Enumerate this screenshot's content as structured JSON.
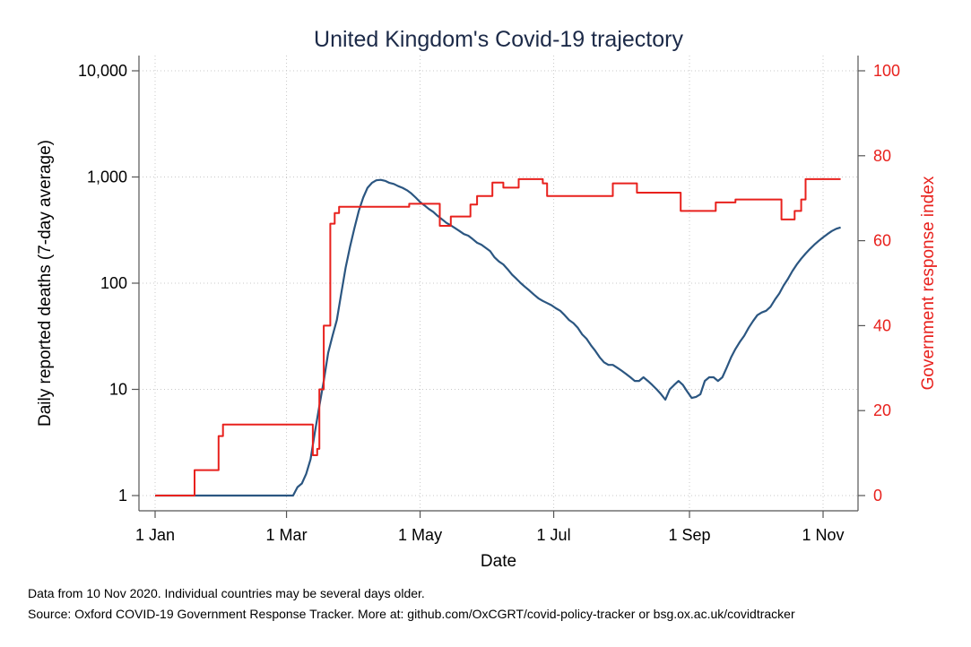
{
  "colors": {
    "deaths_line": "#2b5681",
    "response_line": "#e8211d",
    "right_axis": "#e8211d",
    "title": "#1c2a48",
    "grid": "#c8c8c8",
    "axis": "#555555"
  },
  "notes": {
    "line1": "Data from 10 Nov 2020. Individual countries may be several days older.",
    "line2": "Source: Oxford COVID-19 Government Response Tracker. More at: github.com/OxCGRT/covid-policy-tracker or bsg.ox.ac.uk/covidtracker"
  },
  "chart_data": {
    "type": "line",
    "title": "United Kingdom's Covid-19 trajectory",
    "xlabel": "Date",
    "ylabel": "Daily reported deaths (7-day average)",
    "y2label": "Government response index",
    "grid": true,
    "x_ticks": [
      {
        "date": "2020-01-01",
        "label": "1 Jan"
      },
      {
        "date": "2020-03-01",
        "label": "1 Mar"
      },
      {
        "date": "2020-05-01",
        "label": "1 May"
      },
      {
        "date": "2020-07-01",
        "label": "1 Jul"
      },
      {
        "date": "2020-09-01",
        "label": "1 Sep"
      },
      {
        "date": "2020-11-01",
        "label": "1 Nov"
      }
    ],
    "xlim": [
      "2020-01-01",
      "2020-11-10"
    ],
    "y_scale": "log",
    "ylim": [
      1,
      10000
    ],
    "y_ticks": [
      {
        "value": 1,
        "label": "1"
      },
      {
        "value": 10,
        "label": "10"
      },
      {
        "value": 100,
        "label": "100"
      },
      {
        "value": 1000,
        "label": "1,000"
      },
      {
        "value": 10000,
        "label": "10,000"
      }
    ],
    "y2lim": [
      0,
      100
    ],
    "y2_ticks": [
      {
        "value": 0,
        "label": "0"
      },
      {
        "value": 20,
        "label": "20"
      },
      {
        "value": 40,
        "label": "40"
      },
      {
        "value": 60,
        "label": "60"
      },
      {
        "value": 80,
        "label": "80"
      },
      {
        "value": 100,
        "label": "100"
      }
    ],
    "series": [
      {
        "axis": "left",
        "color": "#2b5681",
        "points": [
          [
            "2020-01-01",
            1
          ],
          [
            "2020-03-04",
            1
          ],
          [
            "2020-03-06",
            1.2
          ],
          [
            "2020-03-08",
            1.3
          ],
          [
            "2020-03-10",
            1.6
          ],
          [
            "2020-03-12",
            2.2
          ],
          [
            "2020-03-14",
            4
          ],
          [
            "2020-03-16",
            7
          ],
          [
            "2020-03-18",
            12
          ],
          [
            "2020-03-20",
            22
          ],
          [
            "2020-03-22",
            32
          ],
          [
            "2020-03-24",
            45
          ],
          [
            "2020-03-26",
            80
          ],
          [
            "2020-03-28",
            140
          ],
          [
            "2020-03-30",
            220
          ],
          [
            "2020-04-01",
            330
          ],
          [
            "2020-04-03",
            480
          ],
          [
            "2020-04-05",
            640
          ],
          [
            "2020-04-07",
            790
          ],
          [
            "2020-04-09",
            880
          ],
          [
            "2020-04-11",
            930
          ],
          [
            "2020-04-13",
            940
          ],
          [
            "2020-04-15",
            920
          ],
          [
            "2020-04-17",
            880
          ],
          [
            "2020-04-19",
            860
          ],
          [
            "2020-04-21",
            820
          ],
          [
            "2020-04-23",
            790
          ],
          [
            "2020-04-25",
            750
          ],
          [
            "2020-04-27",
            700
          ],
          [
            "2020-04-29",
            640
          ],
          [
            "2020-05-01",
            580
          ],
          [
            "2020-05-03",
            540
          ],
          [
            "2020-05-05",
            500
          ],
          [
            "2020-05-07",
            470
          ],
          [
            "2020-05-09",
            430
          ],
          [
            "2020-05-11",
            400
          ],
          [
            "2020-05-13",
            370
          ],
          [
            "2020-05-15",
            350
          ],
          [
            "2020-05-17",
            330
          ],
          [
            "2020-05-19",
            310
          ],
          [
            "2020-05-21",
            290
          ],
          [
            "2020-05-23",
            280
          ],
          [
            "2020-05-25",
            260
          ],
          [
            "2020-05-27",
            240
          ],
          [
            "2020-05-29",
            230
          ],
          [
            "2020-05-31",
            215
          ],
          [
            "2020-06-02",
            200
          ],
          [
            "2020-06-04",
            175
          ],
          [
            "2020-06-06",
            160
          ],
          [
            "2020-06-08",
            150
          ],
          [
            "2020-06-10",
            135
          ],
          [
            "2020-06-12",
            120
          ],
          [
            "2020-06-14",
            110
          ],
          [
            "2020-06-16",
            100
          ],
          [
            "2020-06-18",
            92
          ],
          [
            "2020-06-20",
            85
          ],
          [
            "2020-06-22",
            78
          ],
          [
            "2020-06-24",
            72
          ],
          [
            "2020-06-26",
            68
          ],
          [
            "2020-06-28",
            65
          ],
          [
            "2020-06-30",
            62
          ],
          [
            "2020-07-02",
            58
          ],
          [
            "2020-07-04",
            55
          ],
          [
            "2020-07-06",
            50
          ],
          [
            "2020-07-08",
            45
          ],
          [
            "2020-07-10",
            42
          ],
          [
            "2020-07-12",
            38
          ],
          [
            "2020-07-14",
            33
          ],
          [
            "2020-07-16",
            30
          ],
          [
            "2020-07-18",
            26
          ],
          [
            "2020-07-20",
            23
          ],
          [
            "2020-07-22",
            20
          ],
          [
            "2020-07-24",
            18
          ],
          [
            "2020-07-26",
            17
          ],
          [
            "2020-07-28",
            17
          ],
          [
            "2020-07-30",
            16
          ],
          [
            "2020-08-01",
            15
          ],
          [
            "2020-08-03",
            14
          ],
          [
            "2020-08-05",
            13
          ],
          [
            "2020-08-07",
            12
          ],
          [
            "2020-08-09",
            12
          ],
          [
            "2020-08-11",
            13
          ],
          [
            "2020-08-13",
            12
          ],
          [
            "2020-08-15",
            11
          ],
          [
            "2020-08-17",
            10
          ],
          [
            "2020-08-19",
            9
          ],
          [
            "2020-08-21",
            8
          ],
          [
            "2020-08-23",
            10
          ],
          [
            "2020-08-25",
            11
          ],
          [
            "2020-08-27",
            12
          ],
          [
            "2020-08-29",
            11
          ],
          [
            "2020-08-31",
            9.5
          ],
          [
            "2020-09-02",
            8.3
          ],
          [
            "2020-09-04",
            8.5
          ],
          [
            "2020-09-06",
            9
          ],
          [
            "2020-09-08",
            12
          ],
          [
            "2020-09-10",
            13
          ],
          [
            "2020-09-12",
            13
          ],
          [
            "2020-09-14",
            12
          ],
          [
            "2020-09-16",
            13
          ],
          [
            "2020-09-18",
            16
          ],
          [
            "2020-09-20",
            20
          ],
          [
            "2020-09-22",
            24
          ],
          [
            "2020-09-24",
            28
          ],
          [
            "2020-09-26",
            32
          ],
          [
            "2020-09-28",
            38
          ],
          [
            "2020-09-30",
            44
          ],
          [
            "2020-10-02",
            50
          ],
          [
            "2020-10-04",
            53
          ],
          [
            "2020-10-06",
            55
          ],
          [
            "2020-10-08",
            60
          ],
          [
            "2020-10-10",
            70
          ],
          [
            "2020-10-12",
            80
          ],
          [
            "2020-10-14",
            95
          ],
          [
            "2020-10-16",
            110
          ],
          [
            "2020-10-18",
            130
          ],
          [
            "2020-10-20",
            150
          ],
          [
            "2020-10-22",
            170
          ],
          [
            "2020-10-24",
            190
          ],
          [
            "2020-10-26",
            210
          ],
          [
            "2020-10-28",
            230
          ],
          [
            "2020-10-30",
            250
          ],
          [
            "2020-11-01",
            270
          ],
          [
            "2020-11-03",
            290
          ],
          [
            "2020-11-05",
            310
          ],
          [
            "2020-11-07",
            325
          ],
          [
            "2020-11-09",
            335
          ]
        ]
      },
      {
        "axis": "right",
        "color": "#e8211d",
        "points": [
          [
            "2020-01-01",
            0
          ],
          [
            "2020-01-19",
            0
          ],
          [
            "2020-01-19",
            6
          ],
          [
            "2020-01-30",
            6
          ],
          [
            "2020-01-30",
            14
          ],
          [
            "2020-02-01",
            14
          ],
          [
            "2020-02-01",
            16.7
          ],
          [
            "2020-03-13",
            16.7
          ],
          [
            "2020-03-13",
            9.5
          ],
          [
            "2020-03-15",
            9.5
          ],
          [
            "2020-03-15",
            11
          ],
          [
            "2020-03-16",
            11
          ],
          [
            "2020-03-16",
            25
          ],
          [
            "2020-03-18",
            25
          ],
          [
            "2020-03-18",
            40
          ],
          [
            "2020-03-21",
            40
          ],
          [
            "2020-03-21",
            64
          ],
          [
            "2020-03-23",
            64
          ],
          [
            "2020-03-23",
            66.5
          ],
          [
            "2020-03-25",
            66.5
          ],
          [
            "2020-03-25",
            68
          ],
          [
            "2020-04-26",
            68
          ],
          [
            "2020-04-26",
            68.7
          ],
          [
            "2020-05-10",
            68.7
          ],
          [
            "2020-05-10",
            63.5
          ],
          [
            "2020-05-15",
            63.5
          ],
          [
            "2020-05-15",
            65.7
          ],
          [
            "2020-05-24",
            65.7
          ],
          [
            "2020-05-24",
            68.5
          ],
          [
            "2020-05-27",
            68.5
          ],
          [
            "2020-05-27",
            70.5
          ],
          [
            "2020-06-03",
            70.5
          ],
          [
            "2020-06-03",
            73.7
          ],
          [
            "2020-06-08",
            73.7
          ],
          [
            "2020-06-08",
            72.5
          ],
          [
            "2020-06-15",
            72.5
          ],
          [
            "2020-06-15",
            74.5
          ],
          [
            "2020-06-26",
            74.5
          ],
          [
            "2020-06-26",
            73.5
          ],
          [
            "2020-06-28",
            73.5
          ],
          [
            "2020-06-28",
            70.5
          ],
          [
            "2020-07-28",
            70.5
          ],
          [
            "2020-07-28",
            73.5
          ],
          [
            "2020-08-08",
            73.5
          ],
          [
            "2020-08-08",
            71.3
          ],
          [
            "2020-08-28",
            71.3
          ],
          [
            "2020-08-28",
            67
          ],
          [
            "2020-09-13",
            67
          ],
          [
            "2020-09-13",
            69
          ],
          [
            "2020-09-22",
            69
          ],
          [
            "2020-09-22",
            69.7
          ],
          [
            "2020-10-13",
            69.7
          ],
          [
            "2020-10-13",
            65
          ],
          [
            "2020-10-19",
            65
          ],
          [
            "2020-10-19",
            67
          ],
          [
            "2020-10-22",
            67
          ],
          [
            "2020-10-22",
            69.7
          ],
          [
            "2020-10-24",
            69.7
          ],
          [
            "2020-10-24",
            74.5
          ],
          [
            "2020-11-09",
            74.5
          ]
        ]
      }
    ]
  }
}
